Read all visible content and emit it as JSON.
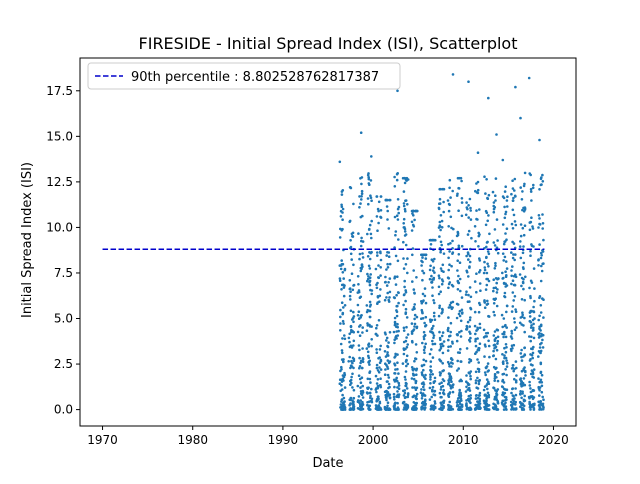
{
  "chart_data": {
    "type": "scatter",
    "title": "FIRESIDE - Initial Spread Index (ISI), Scatterplot",
    "xlabel": "Date",
    "ylabel": "Initial Spread Index (ISI)",
    "xlim": [
      1967.5,
      2022.5
    ],
    "ylim": [
      -0.9,
      19.3
    ],
    "x_ticks": [
      1970,
      1980,
      1990,
      2000,
      2010,
      2020
    ],
    "x_tick_labels": [
      "1970",
      "1980",
      "1990",
      "2000",
      "2010",
      "2020"
    ],
    "y_ticks": [
      0.0,
      2.5,
      5.0,
      7.5,
      10.0,
      12.5,
      15.0,
      17.5
    ],
    "y_tick_labels": [
      "0.0",
      "2.5",
      "5.0",
      "7.5",
      "10.0",
      "12.5",
      "15.0",
      "17.5"
    ],
    "grid": false,
    "legend_position": "upper-left",
    "reference_line": {
      "label": "90th percentile : 8.802528762817387",
      "y": 8.802528762817387,
      "x_range": [
        1970,
        2019
      ],
      "color": "#0000cc",
      "style": "dashed"
    },
    "series": [
      {
        "color": "#1f77b4",
        "seasons": [
          {
            "year": 1996,
            "points": 100,
            "max": 13.6
          },
          {
            "year": 1997,
            "points": 100,
            "max": 12.2
          },
          {
            "year": 1998,
            "points": 100,
            "max": 15.2
          },
          {
            "year": 1999,
            "points": 100,
            "max": 13.9
          },
          {
            "year": 2000,
            "points": 100,
            "max": 11.7
          },
          {
            "year": 2001,
            "points": 100,
            "max": 11.5
          },
          {
            "year": 2002,
            "points": 100,
            "max": 17.5
          },
          {
            "year": 2003,
            "points": 100,
            "max": 12.7
          },
          {
            "year": 2004,
            "points": 100,
            "max": 10.9
          },
          {
            "year": 2005,
            "points": 100,
            "max": 8.5
          },
          {
            "year": 2006,
            "points": 100,
            "max": 9.3
          },
          {
            "year": 2007,
            "points": 100,
            "max": 12.1
          },
          {
            "year": 2008,
            "points": 100,
            "max": 18.4
          },
          {
            "year": 2009,
            "points": 100,
            "max": 12.7
          },
          {
            "year": 2010,
            "points": 100,
            "max": 18.0
          },
          {
            "year": 2011,
            "points": 100,
            "max": 14.1
          },
          {
            "year": 2012,
            "points": 100,
            "max": 17.1
          },
          {
            "year": 2013,
            "points": 100,
            "max": 15.1
          },
          {
            "year": 2014,
            "points": 100,
            "max": 13.7
          },
          {
            "year": 2015,
            "points": 100,
            "max": 17.7
          },
          {
            "year": 2016,
            "points": 100,
            "max": 16.0
          },
          {
            "year": 2017,
            "points": 100,
            "max": 18.2
          },
          {
            "year": 2018,
            "points": 100,
            "max": 14.8
          }
        ]
      }
    ]
  }
}
